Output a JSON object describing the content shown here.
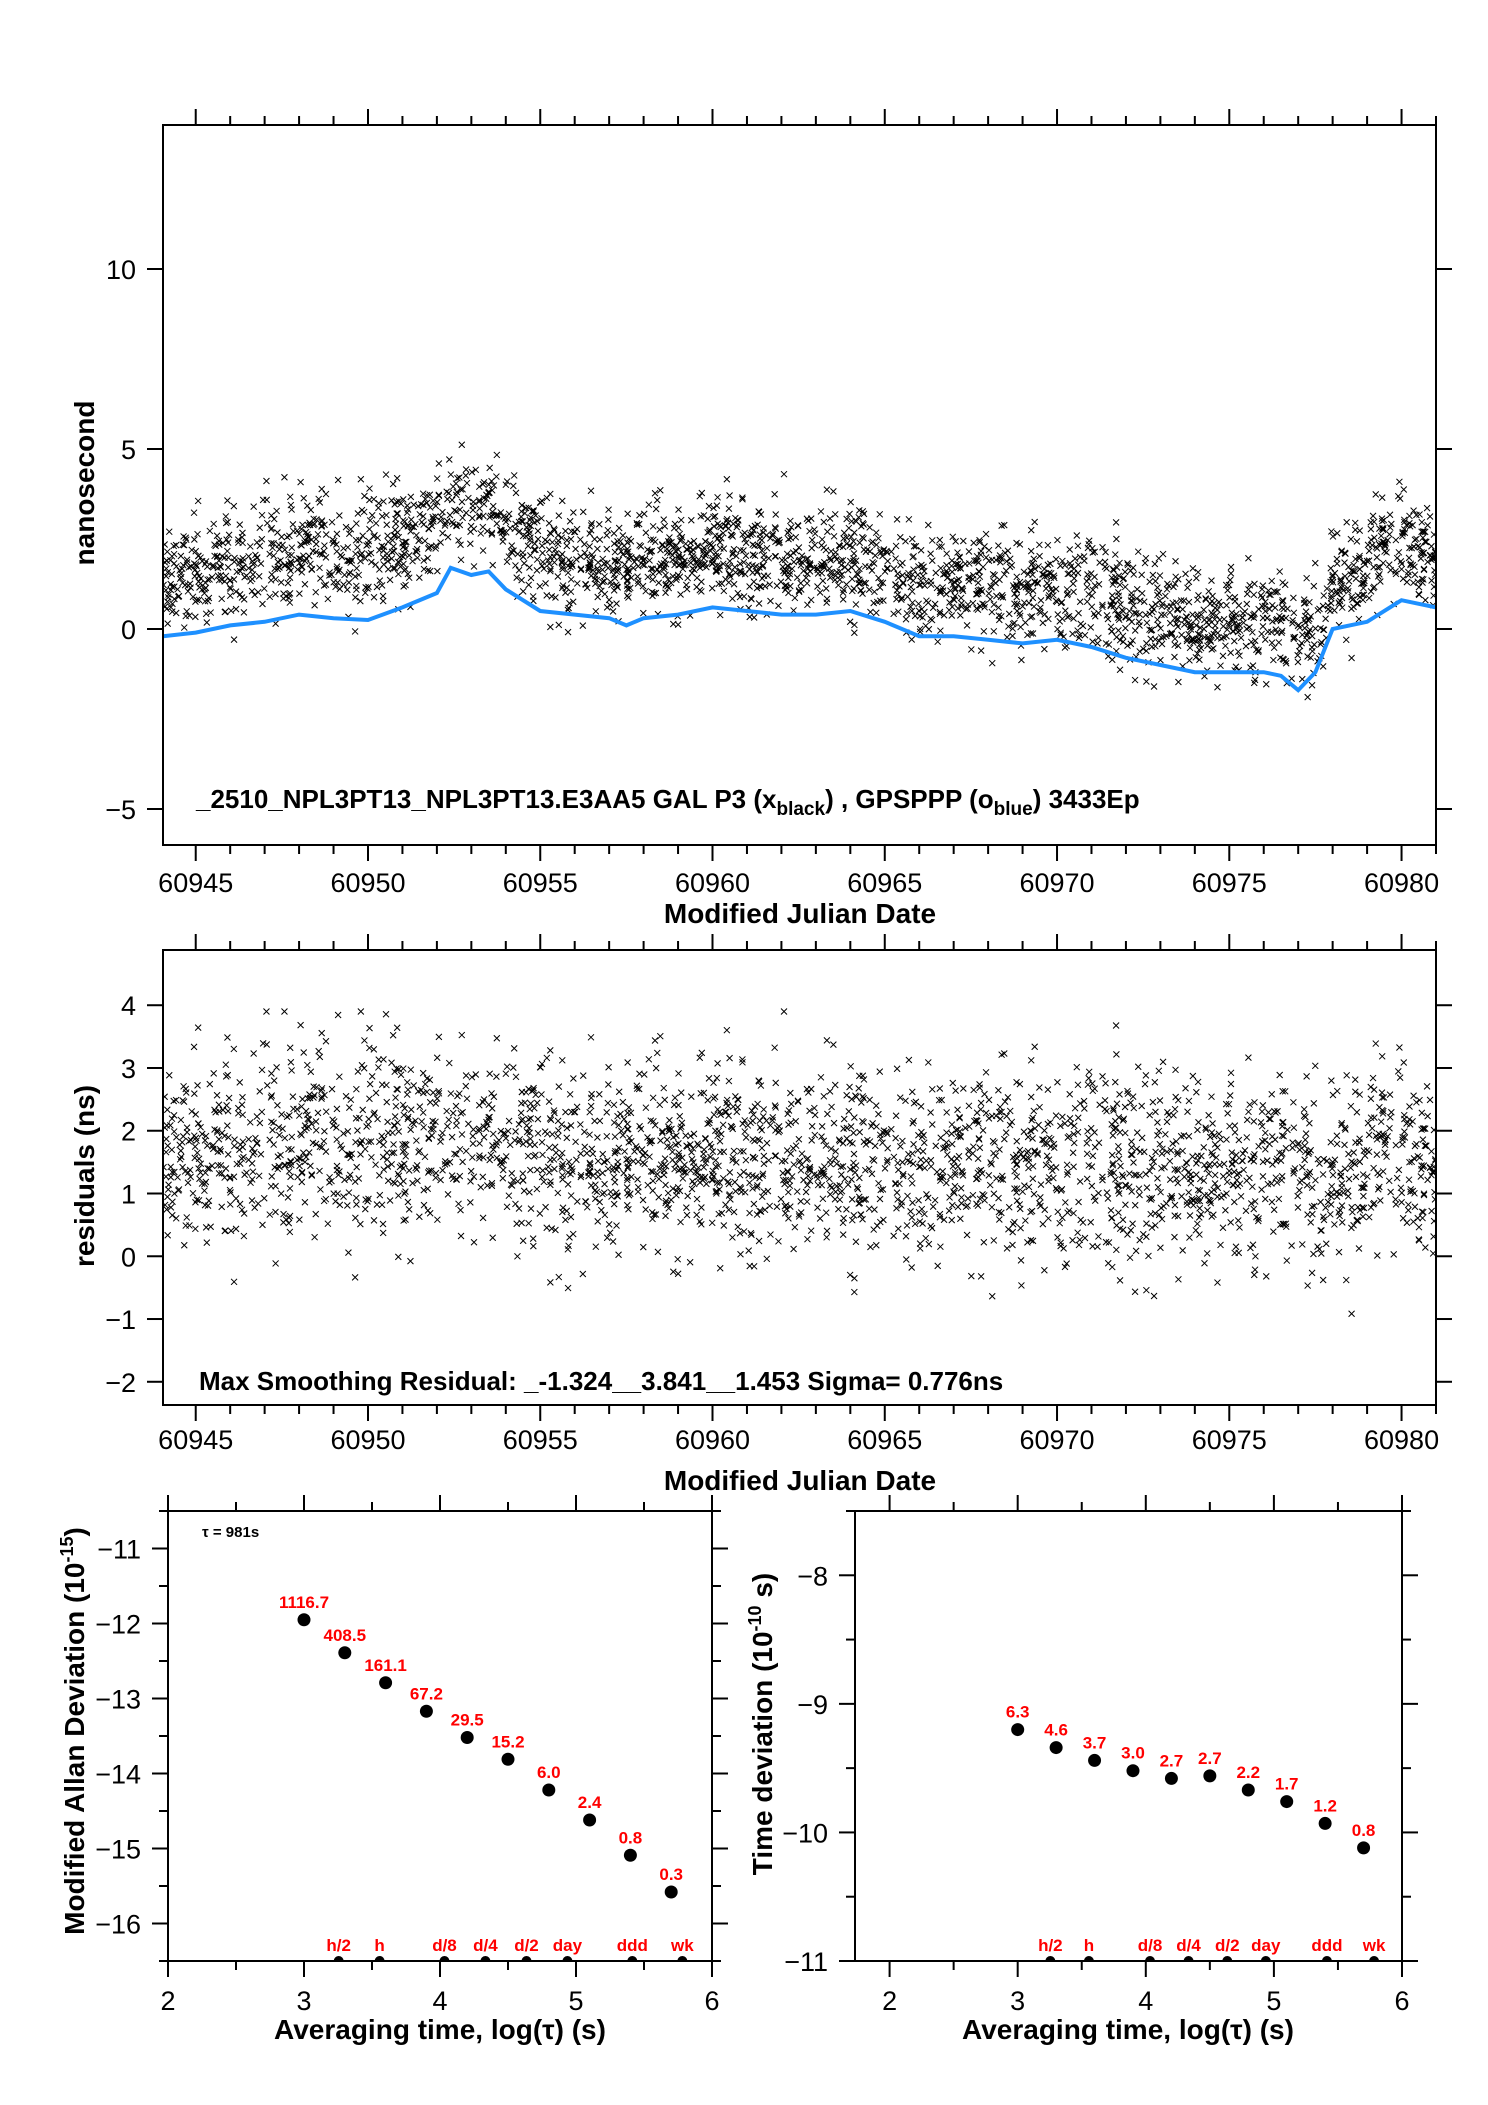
{
  "colors": {
    "smooth_line": "#1e90ff",
    "scatter": "#000000",
    "labels": "#ff0000",
    "points": "#000000"
  },
  "chart_data": [
    {
      "id": "time-series",
      "type": "scatter",
      "title_parts": [
        "_2510_NPL3PT13_NPL3PT13.E3AA5    GAL P3 (x",
        "black",
        ") ,  GPSPPP (o",
        "blue",
        ")  3433Ep"
      ],
      "xlabel": "Modified Julian Date",
      "ylabel": "nanosecond",
      "xlim": [
        60944.05,
        60981.0
      ],
      "ylim": [
        -6,
        14
      ],
      "xticks": [
        "60945",
        "60950",
        "60955",
        "60960",
        "60965",
        "60970",
        "60975",
        "60980"
      ],
      "yticks": [
        "-5",
        "0",
        "5",
        "10"
      ],
      "series": [
        {
          "name": "GAL P3 (x black)",
          "marker": "x",
          "count": 2600,
          "note": "smooth line plus residuals"
        },
        {
          "name": "GPSPPP (o blue)",
          "type": "line",
          "x": [
            60944.05,
            60945,
            60946,
            60947,
            60948,
            60949,
            60950,
            60951,
            60952,
            60952.4,
            60953,
            60953.5,
            60954,
            60955,
            60956,
            60957,
            60957.5,
            60958,
            60959,
            60960,
            60961,
            60962,
            60963,
            60964,
            60965,
            60966,
            60967,
            60968,
            60969,
            60970,
            60971,
            60972,
            60973,
            60974,
            60975,
            60976,
            60976.5,
            60977,
            60977.5,
            60978,
            60979,
            60980,
            60981
          ],
          "y": [
            -0.2,
            -0.1,
            0.1,
            0.2,
            0.4,
            0.3,
            0.25,
            0.6,
            1.0,
            1.7,
            1.5,
            1.6,
            1.1,
            0.5,
            0.4,
            0.3,
            0.1,
            0.3,
            0.4,
            0.6,
            0.5,
            0.4,
            0.4,
            0.5,
            0.2,
            -0.2,
            -0.2,
            -0.3,
            -0.4,
            -0.3,
            -0.5,
            -0.8,
            -1.0,
            -1.2,
            -1.2,
            -1.2,
            -1.3,
            -1.7,
            -1.2,
            0.0,
            0.2,
            0.8,
            0.6
          ]
        }
      ]
    },
    {
      "id": "residuals",
      "type": "scatter",
      "annotation": "Max Smoothing Residual: _-1.324__3.841__1.453  Sigma= 0.776ns",
      "xlabel": "Modified Julian Date",
      "ylabel": "residuals (ns)",
      "xlim": [
        60944.05,
        60981.0
      ],
      "ylim": [
        -2.37,
        4.88
      ],
      "xticks": [
        "60945",
        "60950",
        "60955",
        "60960",
        "60965",
        "60970",
        "60975",
        "60980"
      ],
      "yticks": [
        "-2",
        "-1",
        "0",
        "1",
        "2",
        "3",
        "4"
      ],
      "sigma": 0.776,
      "count": 2600,
      "mean_trend": {
        "x": [
          60944,
          60947,
          60949,
          60951,
          60953,
          60956,
          60958,
          60960,
          60962,
          60965,
          60970,
          60975,
          60977,
          60978,
          60979.5,
          60981
        ],
        "y": [
          1.5,
          1.7,
          1.9,
          1.9,
          1.9,
          1.5,
          1.6,
          1.7,
          1.5,
          1.5,
          1.4,
          1.4,
          1.3,
          1.0,
          1.7,
          1.2
        ]
      }
    },
    {
      "id": "modified-allan-deviation",
      "type": "scatter",
      "annotation": "τ = 981s",
      "xlabel": "Averaging time, log(τ) (s)",
      "ylabel_parts": [
        "Modified Allan Deviation (10",
        "-15",
        ")"
      ],
      "xlim": [
        2,
        6
      ],
      "ylim": [
        -16.5,
        -10.5
      ],
      "xticks": [
        "2",
        "3",
        "4",
        "5",
        "6"
      ],
      "yticks": [
        "-16",
        "-15",
        "-14",
        "-13",
        "-12",
        "-11"
      ],
      "x": [
        3.0,
        3.3,
        3.6,
        3.9,
        4.2,
        4.5,
        4.8,
        5.1,
        5.4,
        5.7
      ],
      "y": [
        -11.95,
        -12.39,
        -12.79,
        -13.17,
        -13.52,
        -13.81,
        -14.22,
        -14.62,
        -15.09,
        -15.58
      ],
      "labels": [
        "1116.7",
        "408.5",
        "161.1",
        "67.2",
        "29.5",
        "15.2",
        "6.0",
        "2.4",
        "0.8",
        "0.3"
      ],
      "markers": {
        "x": [
          3.255,
          3.556,
          4.033,
          4.334,
          4.636,
          4.937,
          5.414,
          5.782
        ],
        "labels": [
          "h/2",
          "h",
          "d/8",
          "d/4",
          "d/2",
          "day",
          "ddd",
          "wk"
        ]
      }
    },
    {
      "id": "time-deviation",
      "type": "scatter",
      "xlabel": "Averaging time, log(τ) (s)",
      "ylabel_parts": [
        "Time deviation (10",
        "-10",
        " s)"
      ],
      "xlim": [
        1.73,
        6
      ],
      "ylim": [
        -11,
        -7.5
      ],
      "xticks": [
        "2",
        "3",
        "4",
        "5",
        "6"
      ],
      "yticks": [
        "-11",
        "-10",
        "-9",
        "-8"
      ],
      "x": [
        3.0,
        3.3,
        3.6,
        3.9,
        4.2,
        4.5,
        4.8,
        5.1,
        5.4,
        5.7
      ],
      "y": [
        -9.2,
        -9.34,
        -9.44,
        -9.52,
        -9.58,
        -9.56,
        -9.67,
        -9.76,
        -9.93,
        -10.12
      ],
      "labels": [
        "6.3",
        "4.6",
        "3.7",
        "3.0",
        "2.7",
        "2.7",
        "2.2",
        "1.7",
        "1.2",
        "0.8"
      ],
      "markers": {
        "x": [
          3.255,
          3.556,
          4.033,
          4.334,
          4.636,
          4.937,
          5.414,
          5.782
        ],
        "labels": [
          "h/2",
          "h",
          "d/8",
          "d/4",
          "d/2",
          "day",
          "ddd",
          "wk"
        ]
      }
    }
  ]
}
